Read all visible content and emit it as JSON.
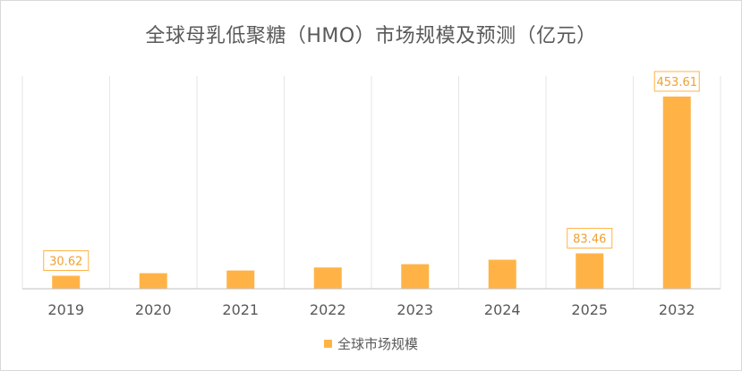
{
  "chart_data": {
    "type": "bar",
    "title": "全球母乳低聚糖（HMO）市场规模及预测（亿元）",
    "categories": [
      "2019",
      "2020",
      "2021",
      "2022",
      "2023",
      "2024",
      "2025",
      "2032"
    ],
    "series": [
      {
        "name": "全球市场规模",
        "values": [
          30.62,
          36.7,
          43.1,
          50.2,
          58.0,
          68.5,
          83.46,
          453.61
        ],
        "data_labels": [
          "30.62",
          "",
          "",
          "",
          "",
          "",
          "83.46",
          "453.61"
        ]
      }
    ],
    "ylim": [
      0,
      453.61
    ],
    "grid": "vertical",
    "legend_position": "bottom",
    "colors": {
      "bar": "#ffb347",
      "label_border": "#ffb347",
      "label_text": "#f0a030"
    }
  }
}
